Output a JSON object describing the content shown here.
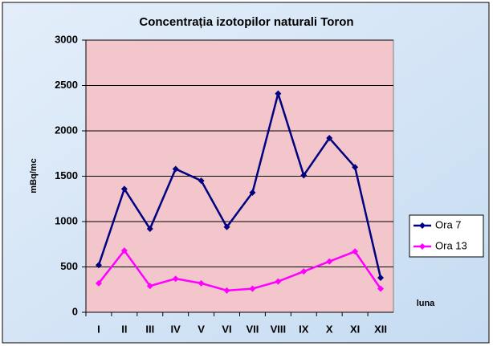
{
  "chart_data": {
    "type": "line",
    "title": "Concentrația izotopilor naturali Toron",
    "y_label": "mBq/mc",
    "x_label": "luna",
    "categories": [
      "I",
      "II",
      "III",
      "IV",
      "V",
      "VI",
      "VII",
      "VIII",
      "IX",
      "X",
      "XI",
      "XII"
    ],
    "series": [
      {
        "name": "Ora 7",
        "color": "#000080",
        "values": [
          520,
          1360,
          920,
          1580,
          1450,
          940,
          1320,
          2410,
          1510,
          1920,
          1600,
          380
        ]
      },
      {
        "name": "Ora 13",
        "color": "#ff00ff",
        "values": [
          320,
          680,
          290,
          370,
          320,
          240,
          260,
          340,
          450,
          560,
          670,
          260
        ]
      }
    ],
    "ylim": [
      0,
      3000
    ],
    "yticks": [
      0,
      500,
      1000,
      1500,
      2000,
      2500,
      3000
    ],
    "grid": true,
    "legend": "right"
  }
}
